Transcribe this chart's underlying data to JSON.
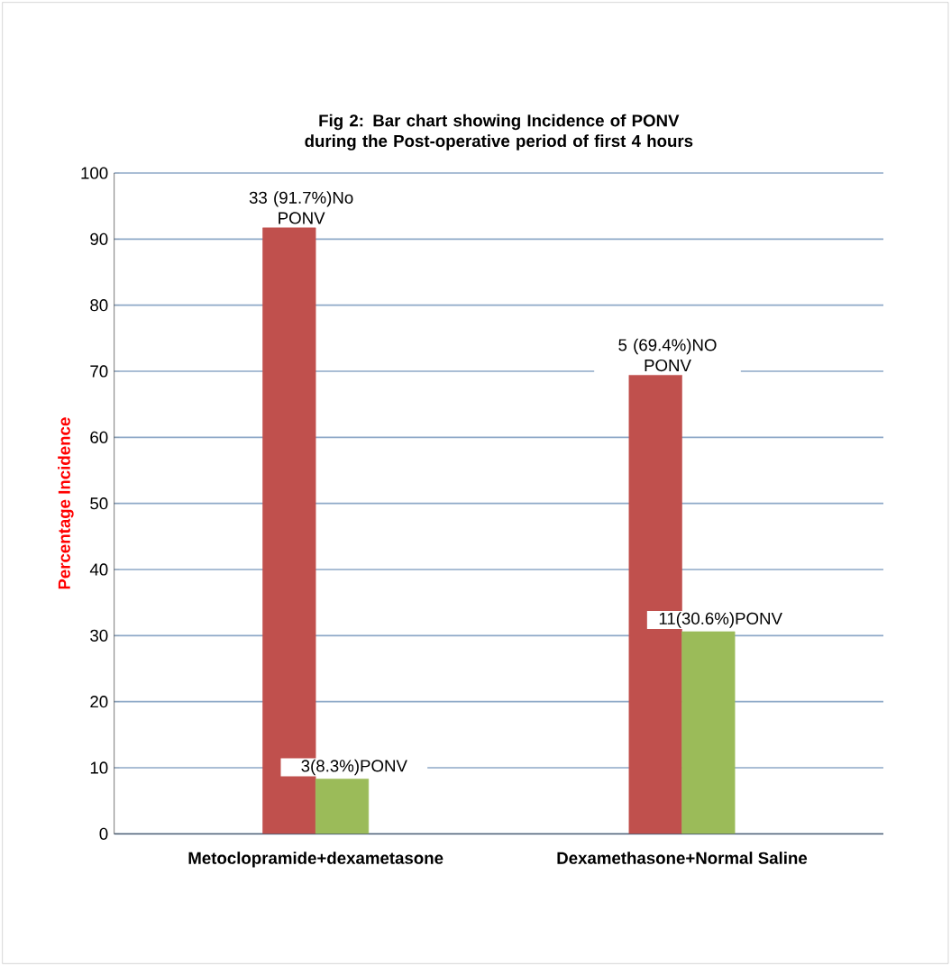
{
  "chart_data": {
    "type": "bar",
    "title": "Fig 2: Bar chart showing Incidence of PONV during the Post-operative period of first 4 hours",
    "ylabel": "Percentage Incidence",
    "categories": [
      "Metoclopramide+dexametasone",
      "Dexamethasone+Normal Saline"
    ],
    "series": [
      {
        "color": "#c0504d",
        "values": [
          91.7,
          69.4
        ],
        "value_labels": [
          "33 (91.7%)No PONV",
          "5 (69.4%)NO PONV"
        ]
      },
      {
        "color": "#9bbb59",
        "values": [
          8.3,
          30.6
        ],
        "value_labels": [
          "3(8.3%)PONV",
          "11(30.6%)PONV"
        ]
      }
    ],
    "ylim": [
      0,
      100
    ],
    "yticks": [
      0,
      10,
      20,
      30,
      40,
      50,
      60,
      70,
      80,
      90,
      100
    ],
    "grid": "y"
  }
}
